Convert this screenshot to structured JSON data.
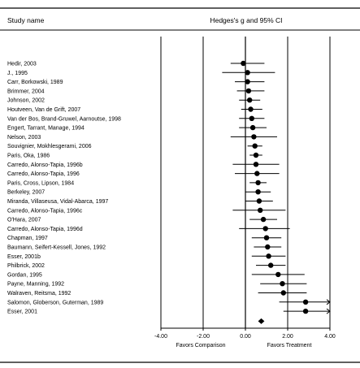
{
  "chart_data": {
    "type": "forest",
    "header_left": "Study name",
    "header_right": "Hedges's g and 95% CI",
    "xlim": [
      -4,
      4
    ],
    "ticks": [
      {
        "value": -4,
        "label": "-4.00"
      },
      {
        "value": -2,
        "label": "-2.00"
      },
      {
        "value": 0,
        "label": "0.00"
      },
      {
        "value": 2,
        "label": "2.00"
      },
      {
        "value": 4,
        "label": "4.00"
      }
    ],
    "favors_left": "Favors Comparison",
    "favors_right": "Favors Treatment",
    "studies": [
      {
        "name": "Hedir, 2003",
        "g": -0.1,
        "lower": -0.7,
        "upper": 0.9
      },
      {
        "name": "J., 1995",
        "g": 0.1,
        "lower": -1.1,
        "upper": 1.4
      },
      {
        "name": "Carr, Borkowski, 1989",
        "g": 0.1,
        "lower": -0.5,
        "upper": 0.9
      },
      {
        "name": "Brimmer, 2004",
        "g": 0.15,
        "lower": -0.4,
        "upper": 0.9
      },
      {
        "name": "Johnson, 2002",
        "g": 0.2,
        "lower": -0.3,
        "upper": 0.7
      },
      {
        "name": "Houtveen, Van de Grift, 2007",
        "g": 0.25,
        "lower": -0.2,
        "upper": 0.8
      },
      {
        "name": "Van der Bos, Brand-Gruwel, Aarnoutse, 1998",
        "g": 0.3,
        "lower": -0.3,
        "upper": 0.9
      },
      {
        "name": "Engert, Tarrant, Manage, 1994",
        "g": 0.35,
        "lower": -0.3,
        "upper": 1.0
      },
      {
        "name": "Nelson, 2003",
        "g": 0.4,
        "lower": -0.7,
        "upper": 1.5
      },
      {
        "name": "Souvignier, Mokhlesgerami, 2006",
        "g": 0.45,
        "lower": 0.1,
        "upper": 0.8
      },
      {
        "name": "Paris, Oka, 1986",
        "g": 0.5,
        "lower": 0.2,
        "upper": 0.8
      },
      {
        "name": "Carredo, Alonso-Tapia, 1996b",
        "g": 0.5,
        "lower": -0.6,
        "upper": 1.6
      },
      {
        "name": "Carredo, Alonso-Tapia, 1996",
        "g": 0.55,
        "lower": -0.5,
        "upper": 1.6
      },
      {
        "name": "Paris, Cross, Lipson, 1984",
        "g": 0.6,
        "lower": 0.2,
        "upper": 1.0
      },
      {
        "name": "Berkeley, 2007",
        "g": 0.6,
        "lower": 0.0,
        "upper": 1.2
      },
      {
        "name": "Miranda, Villaseusa, Vidal-Abarca, 1997",
        "g": 0.65,
        "lower": 0.0,
        "upper": 1.3
      },
      {
        "name": "Carredo, Alonso-Tapia, 1996c",
        "g": 0.7,
        "lower": -0.6,
        "upper": 1.9
      },
      {
        "name": "O'Hara, 2007",
        "g": 0.85,
        "lower": 0.2,
        "upper": 1.5
      },
      {
        "name": "Carredo, Alonso-Tapia, 1996d",
        "g": 0.95,
        "lower": -0.3,
        "upper": 2.1
      },
      {
        "name": "Chapman, 1997",
        "g": 1.0,
        "lower": 0.3,
        "upper": 1.7
      },
      {
        "name": "Baumann, Seifert-Kessell, Jones, 1992",
        "g": 1.05,
        "lower": 0.4,
        "upper": 1.7
      },
      {
        "name": "Esser, 2001b",
        "g": 1.1,
        "lower": 0.3,
        "upper": 1.9
      },
      {
        "name": "Philbrick, 2002",
        "g": 1.2,
        "lower": 0.5,
        "upper": 1.9
      },
      {
        "name": "Gordan, 1995",
        "g": 1.55,
        "lower": 0.3,
        "upper": 2.8
      },
      {
        "name": "Payne, Manning, 1992",
        "g": 1.75,
        "lower": 0.7,
        "upper": 2.9
      },
      {
        "name": "Walraven, Reitsma, 1992",
        "g": 1.8,
        "lower": 0.6,
        "upper": 2.9
      },
      {
        "name": "Salomon, Globerson, Guterman, 1989",
        "g": 2.85,
        "lower": 1.6,
        "upper": 4.1,
        "upper_arrow": true
      },
      {
        "name": "Esser, 2001",
        "g": 2.85,
        "lower": 1.8,
        "upper": 4.1,
        "upper_arrow": true
      }
    ],
    "summary": {
      "g": 0.75,
      "lower": 0.6,
      "upper": 0.9
    }
  }
}
